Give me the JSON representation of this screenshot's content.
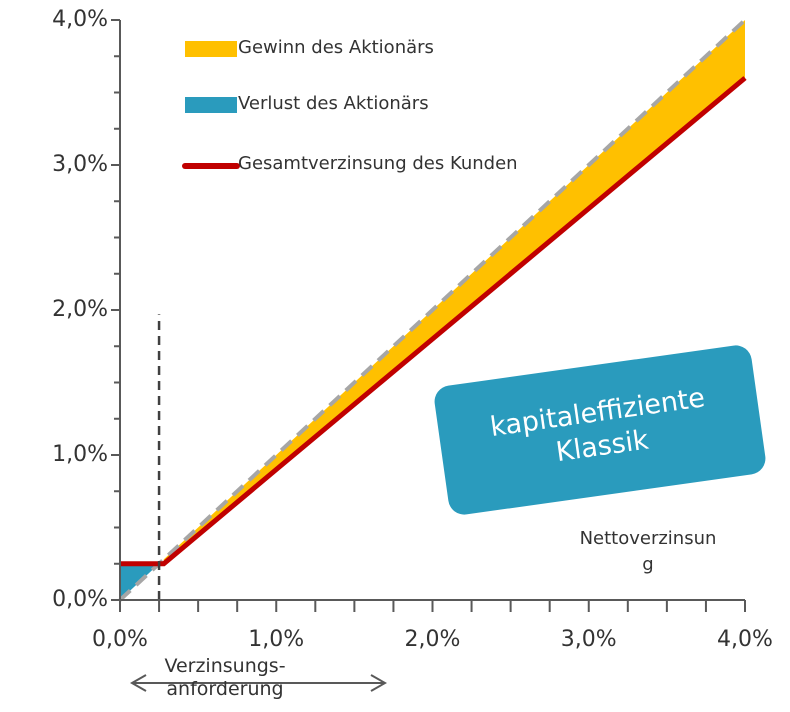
{
  "chart_data": {
    "type": "line",
    "xlim": [
      0,
      4
    ],
    "ylim": [
      0,
      4
    ],
    "xticks": [
      {
        "value": 0,
        "label": "0,0%"
      },
      {
        "value": 1,
        "label": "1,0%"
      },
      {
        "value": 2,
        "label": "2,0%"
      },
      {
        "value": 3,
        "label": "3,0%"
      },
      {
        "value": 4,
        "label": "4,0%"
      }
    ],
    "yticks": [
      {
        "value": 0,
        "label": "0,0%"
      },
      {
        "value": 1,
        "label": "1,0%"
      },
      {
        "value": 2,
        "label": "2,0%"
      },
      {
        "value": 3,
        "label": "3,0%"
      },
      {
        "value": 4,
        "label": "4,0%"
      }
    ],
    "xticks_minor": [
      0.25,
      0.5,
      0.75,
      1.25,
      1.5,
      1.75,
      2.25,
      2.5,
      2.75,
      3.25,
      3.5,
      3.75
    ],
    "yticks_minor": [
      0.25,
      0.5,
      0.75,
      1.25,
      1.5,
      1.75,
      2.25,
      2.5,
      2.75,
      3.25,
      3.5,
      3.75
    ],
    "x_label": [
      "Nettoverzinsun",
      "g"
    ],
    "areas": [
      {
        "name": "Gewinn des Aktionärs",
        "color": "#ffc000",
        "x": [
          0.28,
          1,
          2,
          3,
          4
        ],
        "lower": [
          0.25,
          0.9,
          1.8,
          2.7,
          3.6
        ],
        "upper": [
          0.28,
          1,
          2,
          3,
          4
        ]
      },
      {
        "name": "Verlust des Aktionärs",
        "color": "#2a9bbd",
        "x": [
          0,
          0.25
        ],
        "lower": [
          0,
          0.25
        ],
        "upper": [
          0.25,
          0.25
        ]
      }
    ],
    "series": [
      {
        "color": "#a6a6a6",
        "dashed": true,
        "x": [
          0,
          0.25,
          0.28,
          1,
          2,
          3,
          4
        ],
        "values": [
          0,
          0.25,
          0.28,
          1,
          2,
          3,
          4
        ]
      },
      {
        "name": "Gesamtverzinsung des Kunden",
        "color": "#c00000",
        "x": [
          0,
          0.25,
          0.28,
          1,
          2,
          3,
          4
        ],
        "values": [
          0.25,
          0.25,
          0.25,
          0.9,
          1.8,
          2.7,
          3.6
        ]
      }
    ],
    "threshold": {
      "x": 0.25,
      "y_top": 1.97
    },
    "annotation": "Verzinsungs-anforderung",
    "badge": "kapitaleffiziente Klassik"
  }
}
